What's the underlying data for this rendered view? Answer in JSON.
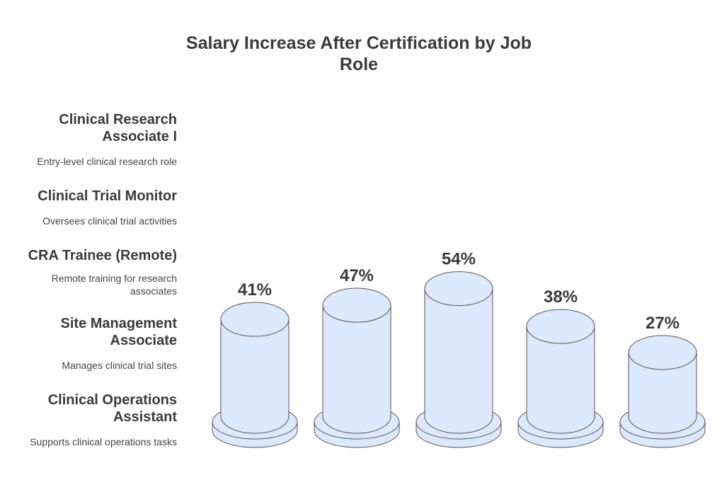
{
  "chart_data": {
    "type": "bar",
    "title": "Salary Increase After Certification by Job Role",
    "categories": [
      "Clinical Research Associate I",
      "Clinical Trial Monitor",
      "CRA Trainee (Remote)",
      "Site Management Associate",
      "Clinical Operations Assistant"
    ],
    "descriptions": [
      "Entry-level clinical research role",
      "Oversees clinical trial activities",
      "Remote training for research associates",
      "Manages clinical trial sites",
      "Supports clinical operations tasks"
    ],
    "values": [
      41,
      47,
      54,
      38,
      27
    ],
    "value_labels": [
      "41%",
      "47%",
      "54%",
      "38%",
      "27%"
    ],
    "unit": "%",
    "colors": {
      "fill": "#dce8fb",
      "stroke": "#555555",
      "base": "#dce8fb"
    }
  }
}
